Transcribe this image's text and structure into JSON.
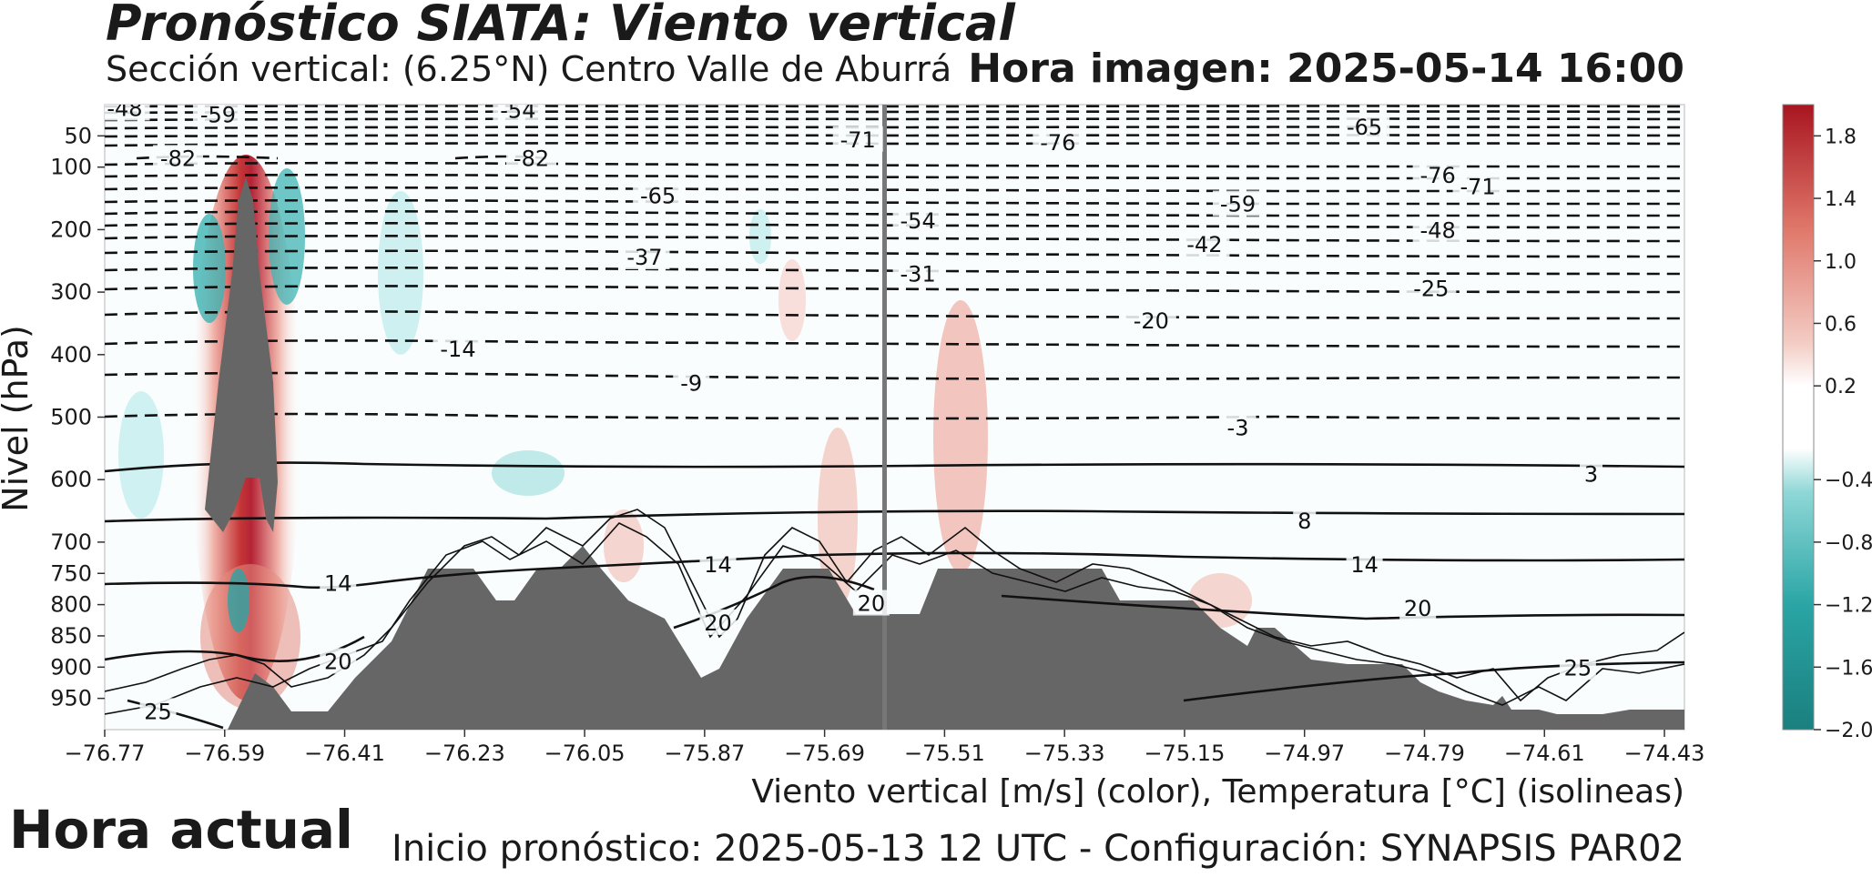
{
  "header": {
    "title": "Pronóstico SIATA: Viento vertical",
    "subtitle": "Sección vertical: (6.25°N) Centro Valle de Aburrá",
    "hora_imagen": "Hora imagen: 2025-05-14 16:00"
  },
  "footer": {
    "hora_actual": "Hora actual",
    "xcaption": "Viento vertical [m/s] (color), Temperatura [°C] (isolineas)",
    "inicio": "Inicio pronóstico: 2025-05-13 12 UTC - Configuración: SYNAPSIS PAR02"
  },
  "colors": {
    "terrain": "#666666",
    "marker_line": "#777777",
    "positive_strong": "#b2182b",
    "negative_strong": "#1b8a8a"
  },
  "chart_data": {
    "type": "heatmap",
    "ylabel": "Nivel (hPa)",
    "x_ticks": [
      "−76.77",
      "−76.59",
      "−76.41",
      "−76.23",
      "−76.05",
      "−75.87",
      "−75.69",
      "−75.51",
      "−75.33",
      "−75.15",
      "−74.97",
      "−74.79",
      "−74.61",
      "−74.43"
    ],
    "x_tick_values": [
      -76.77,
      -76.59,
      -76.41,
      -76.23,
      -76.05,
      -75.87,
      -75.69,
      -75.51,
      -75.33,
      -75.15,
      -74.97,
      -74.79,
      -74.61,
      -74.43
    ],
    "xlim": [
      -76.77,
      -74.4
    ],
    "y_ticks": [
      "50",
      "100",
      "200",
      "300",
      "400",
      "500",
      "600",
      "700",
      "750",
      "800",
      "850",
      "900",
      "950"
    ],
    "y_tick_values": [
      50,
      100,
      200,
      300,
      400,
      500,
      600,
      700,
      750,
      800,
      850,
      900,
      950
    ],
    "ylim": [
      1000,
      0
    ],
    "current_time_longitude": -75.6,
    "colorbar": {
      "ticks": [
        "1.8",
        "1.4",
        "1.0",
        "0.6",
        "0.2",
        "−0.4",
        "−0.8",
        "−1.2",
        "−1.6",
        "−2.0"
      ],
      "values": [
        1.8,
        1.4,
        1.0,
        0.6,
        0.2,
        -0.4,
        -0.8,
        -1.2,
        -1.6,
        -2.0
      ],
      "range": [
        -2.0,
        2.0
      ],
      "colors": [
        "#1b7f7f",
        "#1a9e9e",
        "#3fb3b3",
        "#6cc8c8",
        "#9fdcdc",
        "#c9eeee",
        "#ffffff",
        "#f7dcd8",
        "#f1c0b8",
        "#ea9f93",
        "#e0786b",
        "#d44f45",
        "#c12b2b",
        "#a81520"
      ]
    },
    "isotherm_labels": [
      {
        "text": "25",
        "lon": -76.69,
        "p": 970
      },
      {
        "text": "20",
        "lon": -76.42,
        "p": 890
      },
      {
        "text": "14",
        "lon": -76.42,
        "p": 765
      },
      {
        "text": "14",
        "lon": -75.85,
        "p": 735
      },
      {
        "text": "20",
        "lon": -75.85,
        "p": 828
      },
      {
        "text": "20",
        "lon": -75.62,
        "p": 797
      },
      {
        "text": "14",
        "lon": -74.88,
        "p": 735
      },
      {
        "text": "20",
        "lon": -74.8,
        "p": 805
      },
      {
        "text": "25",
        "lon": -74.56,
        "p": 900
      },
      {
        "text": "8",
        "lon": -74.97,
        "p": 665
      },
      {
        "text": "3",
        "lon": -74.54,
        "p": 590
      },
      {
        "text": "-3",
        "lon": -75.07,
        "p": 516
      },
      {
        "text": "-9",
        "lon": -75.89,
        "p": 445
      },
      {
        "text": "-14",
        "lon": -76.24,
        "p": 390
      },
      {
        "text": "-20",
        "lon": -75.2,
        "p": 345
      },
      {
        "text": "-25",
        "lon": -74.78,
        "p": 293
      },
      {
        "text": "-31",
        "lon": -75.55,
        "p": 270
      },
      {
        "text": "-37",
        "lon": -75.96,
        "p": 243
      },
      {
        "text": "-42",
        "lon": -75.12,
        "p": 223
      },
      {
        "text": "-48",
        "lon": -74.77,
        "p": 200
      },
      {
        "text": "-54",
        "lon": -75.55,
        "p": 185
      },
      {
        "text": "-59",
        "lon": -75.07,
        "p": 158
      },
      {
        "text": "-65",
        "lon": -75.94,
        "p": 145
      },
      {
        "text": "-71",
        "lon": -74.71,
        "p": 130
      },
      {
        "text": "-76",
        "lon": -74.77,
        "p": 112
      },
      {
        "text": "-82",
        "lon": -76.66,
        "p": 85
      },
      {
        "text": "-82",
        "lon": -76.13,
        "p": 85
      },
      {
        "text": "-71",
        "lon": -75.64,
        "p": 55
      },
      {
        "text": "-76",
        "lon": -75.34,
        "p": 60
      },
      {
        "text": "-65",
        "lon": -74.88,
        "p": 35
      },
      {
        "text": "-59",
        "lon": -76.6,
        "p": 15
      },
      {
        "text": "-54",
        "lon": -76.15,
        "p": 8
      },
      {
        "text": "-48",
        "lon": -76.74,
        "p": 5
      }
    ]
  }
}
